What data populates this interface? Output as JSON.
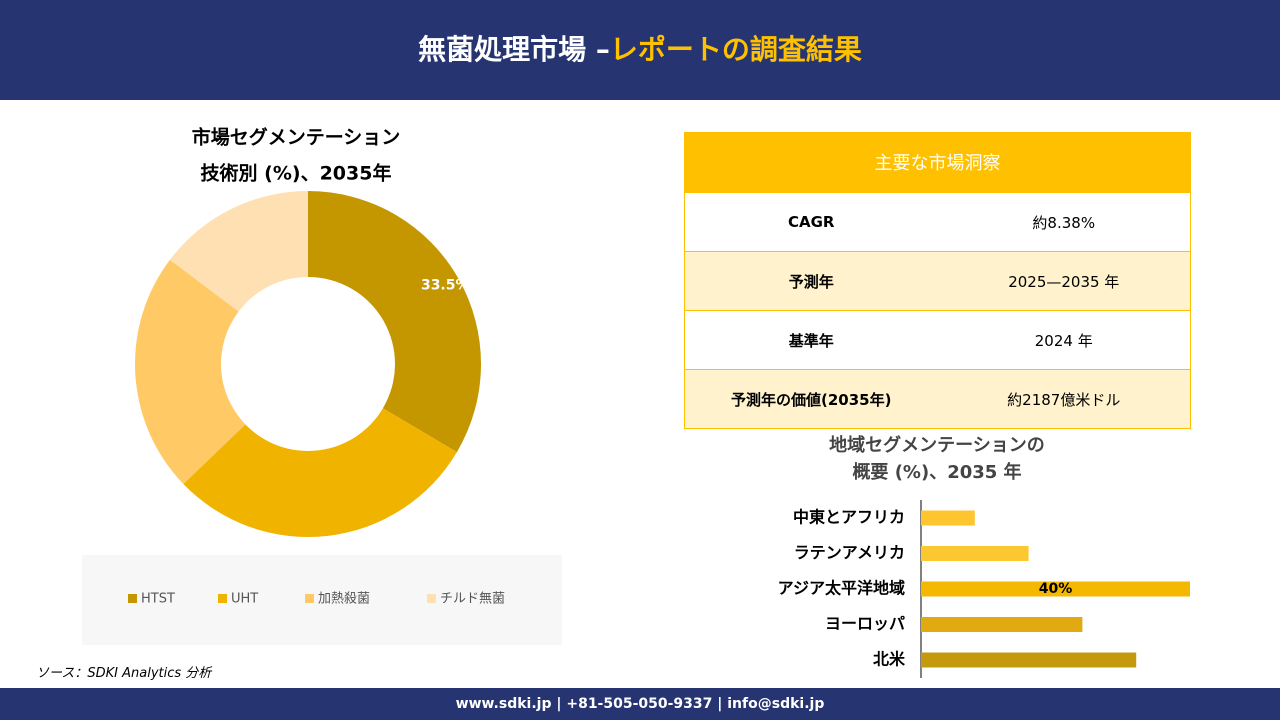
{
  "header": {
    "title_main": "無菌処理市場 –",
    "title_highlight": "レポートの調査結果"
  },
  "chart_data": [
    {
      "type": "pie",
      "title_lines": [
        "市場セグメンテーション",
        "技術別 (%)、2035年"
      ],
      "categories": [
        "HTST",
        "UHT",
        "加熱殺菌",
        "チルド無菌"
      ],
      "values": [
        33.5,
        29.3,
        22.5,
        14.7
      ],
      "value_labels": [
        "33.5%",
        null,
        null,
        null
      ],
      "colors": [
        "#c49600",
        "#f0b400",
        "#ffc966",
        "#ffe0b3"
      ],
      "donut": true
    },
    {
      "type": "bar",
      "orientation": "horizontal",
      "title_lines": [
        "地域セグメンテーションの",
        "概要 (%)、2035 年"
      ],
      "categories": [
        "中東とアフリカ",
        "ラテンアメリカ",
        "アジア太平洋地域",
        "ヨーロッパ",
        "北米"
      ],
      "values": [
        8,
        16,
        40,
        24,
        32
      ],
      "value_labels": [
        null,
        null,
        "40%",
        null,
        null
      ],
      "colors": [
        "#ffc52e",
        "#fcc832",
        "#f5b800",
        "#e0aa10",
        "#c49a0c"
      ],
      "xlim": [
        0,
        40
      ]
    }
  ],
  "table": {
    "header": "主要な市場洞察",
    "rows": [
      [
        "CAGR",
        "約8.38%"
      ],
      [
        "予測年",
        "2025—2035 年"
      ],
      [
        "基準年",
        "2024 年"
      ],
      [
        "予測年の価値(2035年)",
        "約2187億米ドル"
      ]
    ]
  },
  "source": "ソース：SDKI Analytics 分析",
  "footer": "www.sdki.jp | +81-505-050-9337 | info@sdki.jp"
}
